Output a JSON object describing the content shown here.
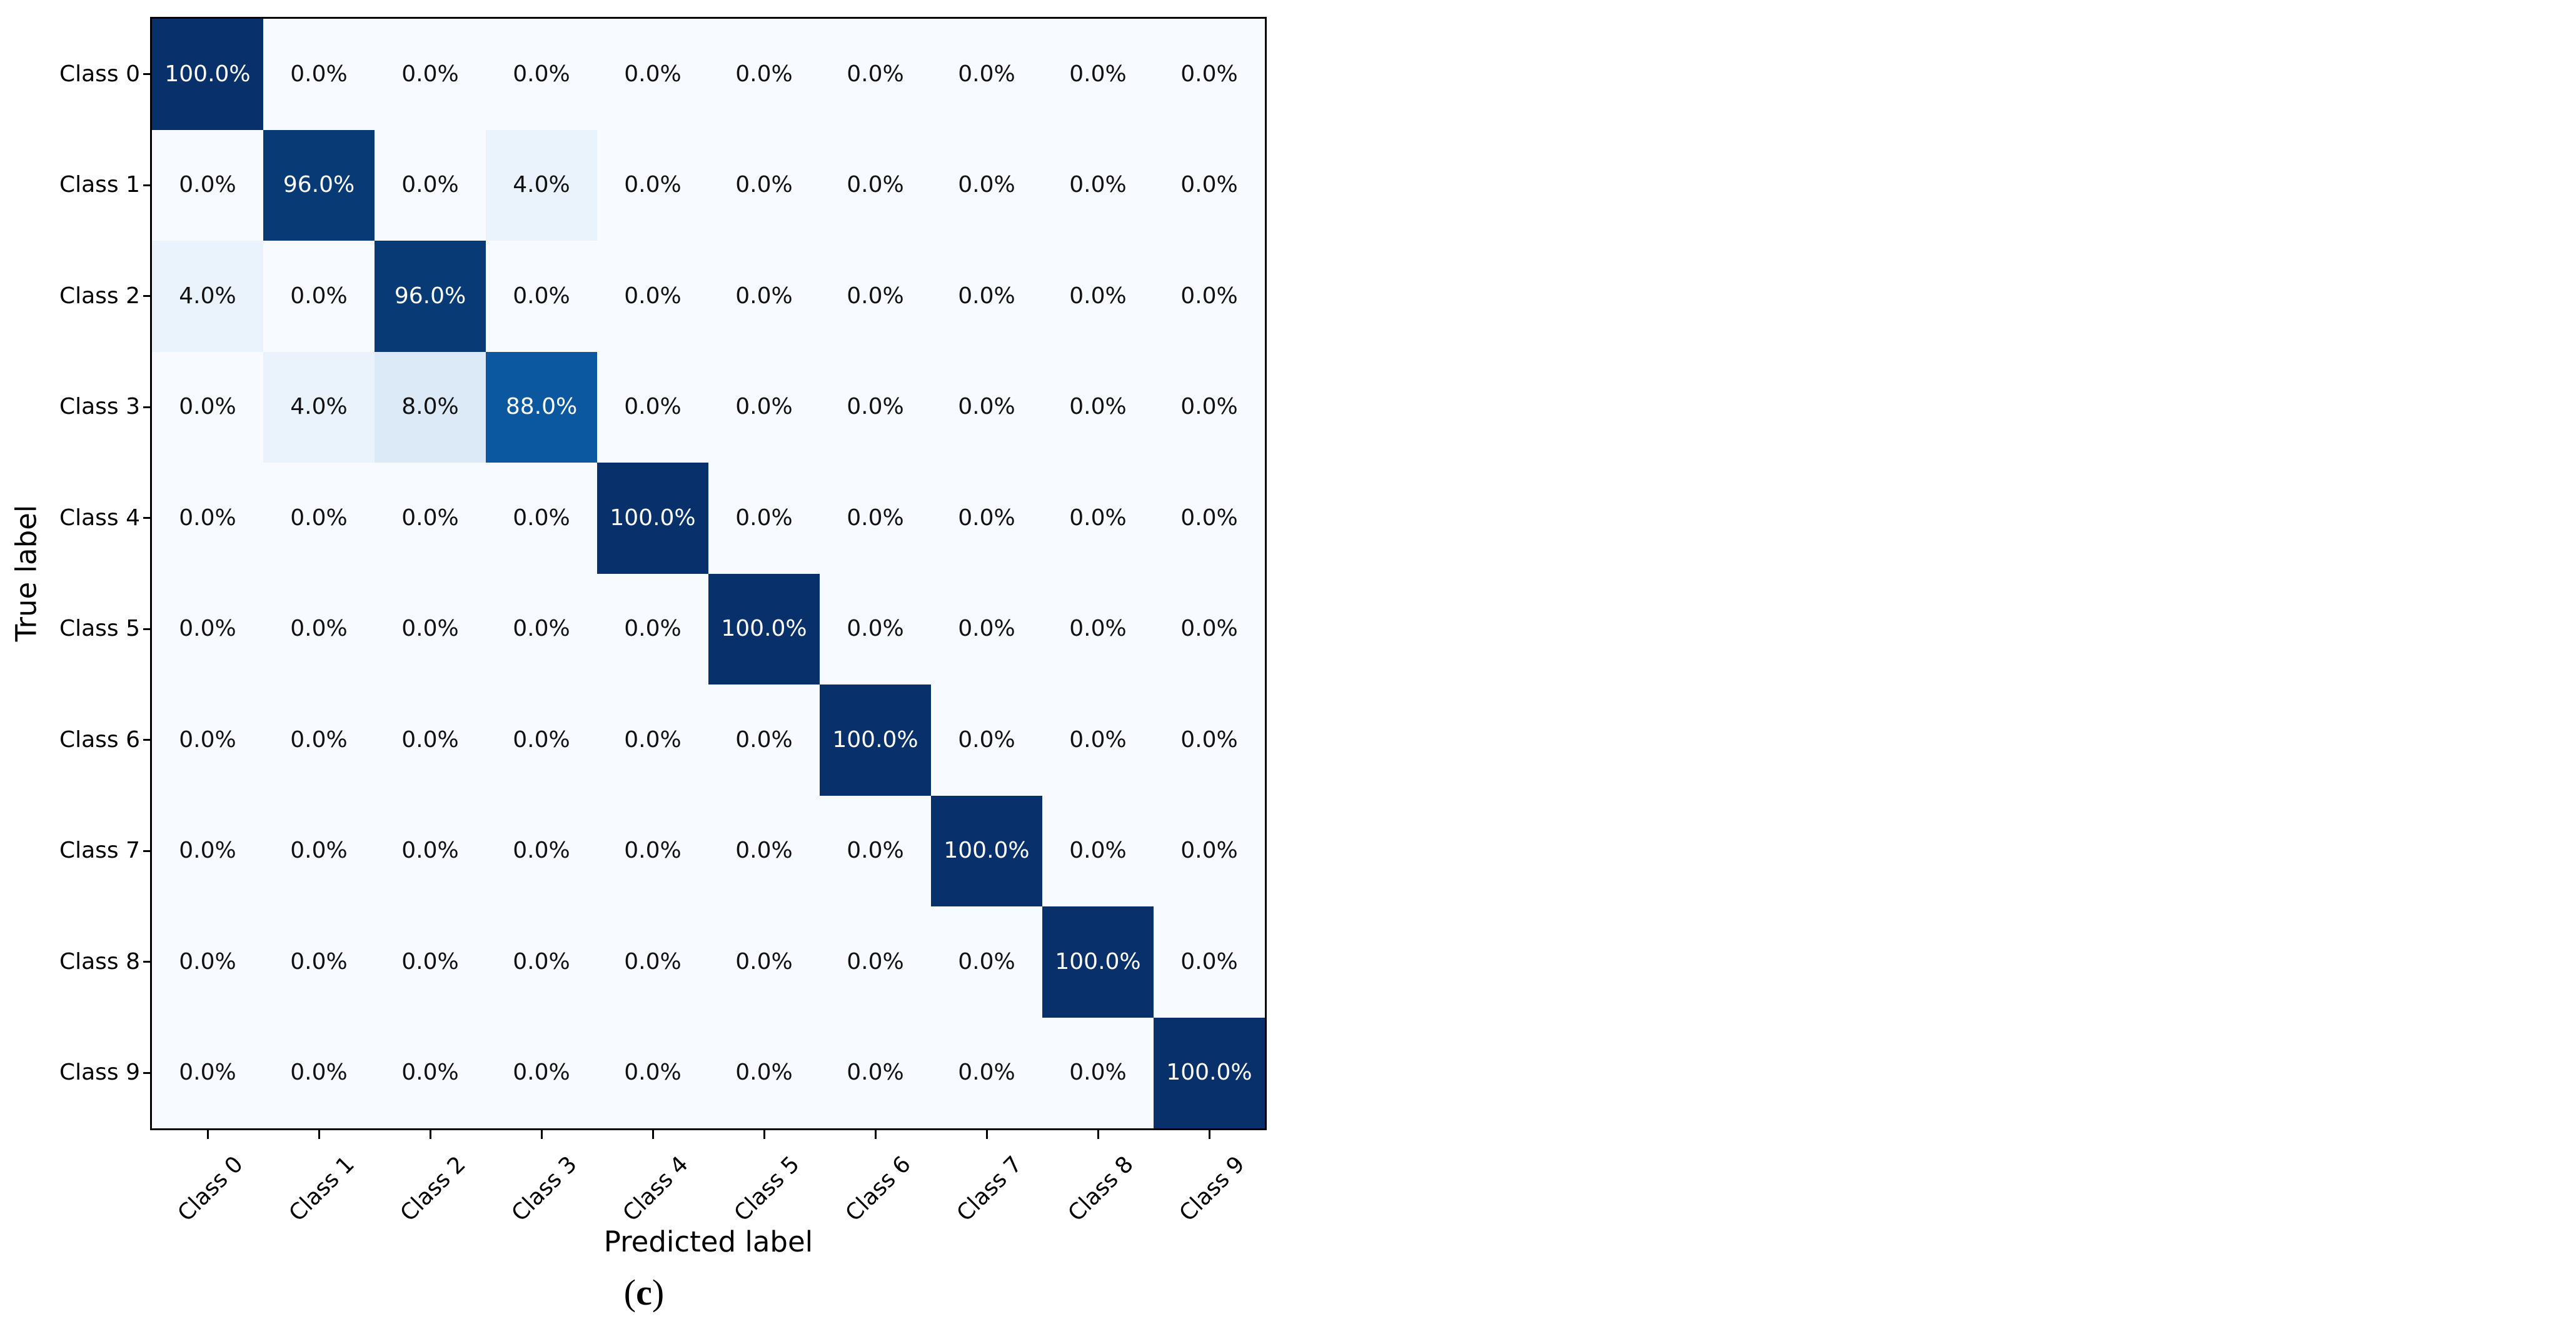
{
  "figure": {
    "xlabel": "Predicted label",
    "ylabel": "True label",
    "caption": {
      "open": "(",
      "letter": "c",
      "close": ")"
    }
  },
  "chart_data": {
    "type": "heatmap",
    "title": "",
    "xlabel": "Predicted label",
    "ylabel": "True label",
    "caption": "(c)",
    "colormap": "Blues",
    "legend": "none",
    "x_categories": [
      "Class 0",
      "Class 1",
      "Class 2",
      "Class 3",
      "Class 4",
      "Class 5",
      "Class 6",
      "Class 7",
      "Class 8",
      "Class 9"
    ],
    "y_categories": [
      "Class 0",
      "Class 1",
      "Class 2",
      "Class 3",
      "Class 4",
      "Class 5",
      "Class 6",
      "Class 7",
      "Class 8",
      "Class 9"
    ],
    "values_percent": [
      [
        100,
        0,
        0,
        0,
        0,
        0,
        0,
        0,
        0,
        0
      ],
      [
        0,
        96,
        0,
        4,
        0,
        0,
        0,
        0,
        0,
        0
      ],
      [
        4,
        0,
        96,
        0,
        0,
        0,
        0,
        0,
        0,
        0
      ],
      [
        0,
        4,
        8,
        88,
        0,
        0,
        0,
        0,
        0,
        0
      ],
      [
        0,
        0,
        0,
        0,
        100,
        0,
        0,
        0,
        0,
        0
      ],
      [
        0,
        0,
        0,
        0,
        0,
        100,
        0,
        0,
        0,
        0
      ],
      [
        0,
        0,
        0,
        0,
        0,
        0,
        100,
        0,
        0,
        0
      ],
      [
        0,
        0,
        0,
        0,
        0,
        0,
        0,
        100,
        0,
        0
      ],
      [
        0,
        0,
        0,
        0,
        0,
        0,
        0,
        0,
        100,
        0
      ],
      [
        0,
        0,
        0,
        0,
        0,
        0,
        0,
        0,
        0,
        100
      ]
    ],
    "cell_labels": [
      [
        "100.0%",
        "0.0%",
        "0.0%",
        "0.0%",
        "0.0%",
        "0.0%",
        "0.0%",
        "0.0%",
        "0.0%",
        "0.0%"
      ],
      [
        "0.0%",
        "96.0%",
        "0.0%",
        "4.0%",
        "0.0%",
        "0.0%",
        "0.0%",
        "0.0%",
        "0.0%",
        "0.0%"
      ],
      [
        "4.0%",
        "0.0%",
        "96.0%",
        "0.0%",
        "0.0%",
        "0.0%",
        "0.0%",
        "0.0%",
        "0.0%",
        "0.0%"
      ],
      [
        "0.0%",
        "4.0%",
        "8.0%",
        "88.0%",
        "0.0%",
        "0.0%",
        "0.0%",
        "0.0%",
        "0.0%",
        "0.0%"
      ],
      [
        "0.0%",
        "0.0%",
        "0.0%",
        "0.0%",
        "100.0%",
        "0.0%",
        "0.0%",
        "0.0%",
        "0.0%",
        "0.0%"
      ],
      [
        "0.0%",
        "0.0%",
        "0.0%",
        "0.0%",
        "0.0%",
        "100.0%",
        "0.0%",
        "0.0%",
        "0.0%",
        "0.0%"
      ],
      [
        "0.0%",
        "0.0%",
        "0.0%",
        "0.0%",
        "0.0%",
        "0.0%",
        "100.0%",
        "0.0%",
        "0.0%",
        "0.0%"
      ],
      [
        "0.0%",
        "0.0%",
        "0.0%",
        "0.0%",
        "0.0%",
        "0.0%",
        "0.0%",
        "100.0%",
        "0.0%",
        "0.0%"
      ],
      [
        "0.0%",
        "0.0%",
        "0.0%",
        "0.0%",
        "0.0%",
        "0.0%",
        "0.0%",
        "0.0%",
        "100.0%",
        "0.0%"
      ],
      [
        "0.0%",
        "0.0%",
        "0.0%",
        "0.0%",
        "0.0%",
        "0.0%",
        "0.0%",
        "0.0%",
        "0.0%",
        "100.0%"
      ]
    ],
    "color_scale": {
      "0": "#f7fbff",
      "4": "#eaf2fb",
      "8": "#dce9f6",
      "88": "#0c58a0",
      "96": "#083a75",
      "100": "#08306b"
    },
    "text_colors": {
      "dark_cell": "#ffffff",
      "light_cell": "#111111"
    },
    "dark_text_threshold_percent": 50
  }
}
